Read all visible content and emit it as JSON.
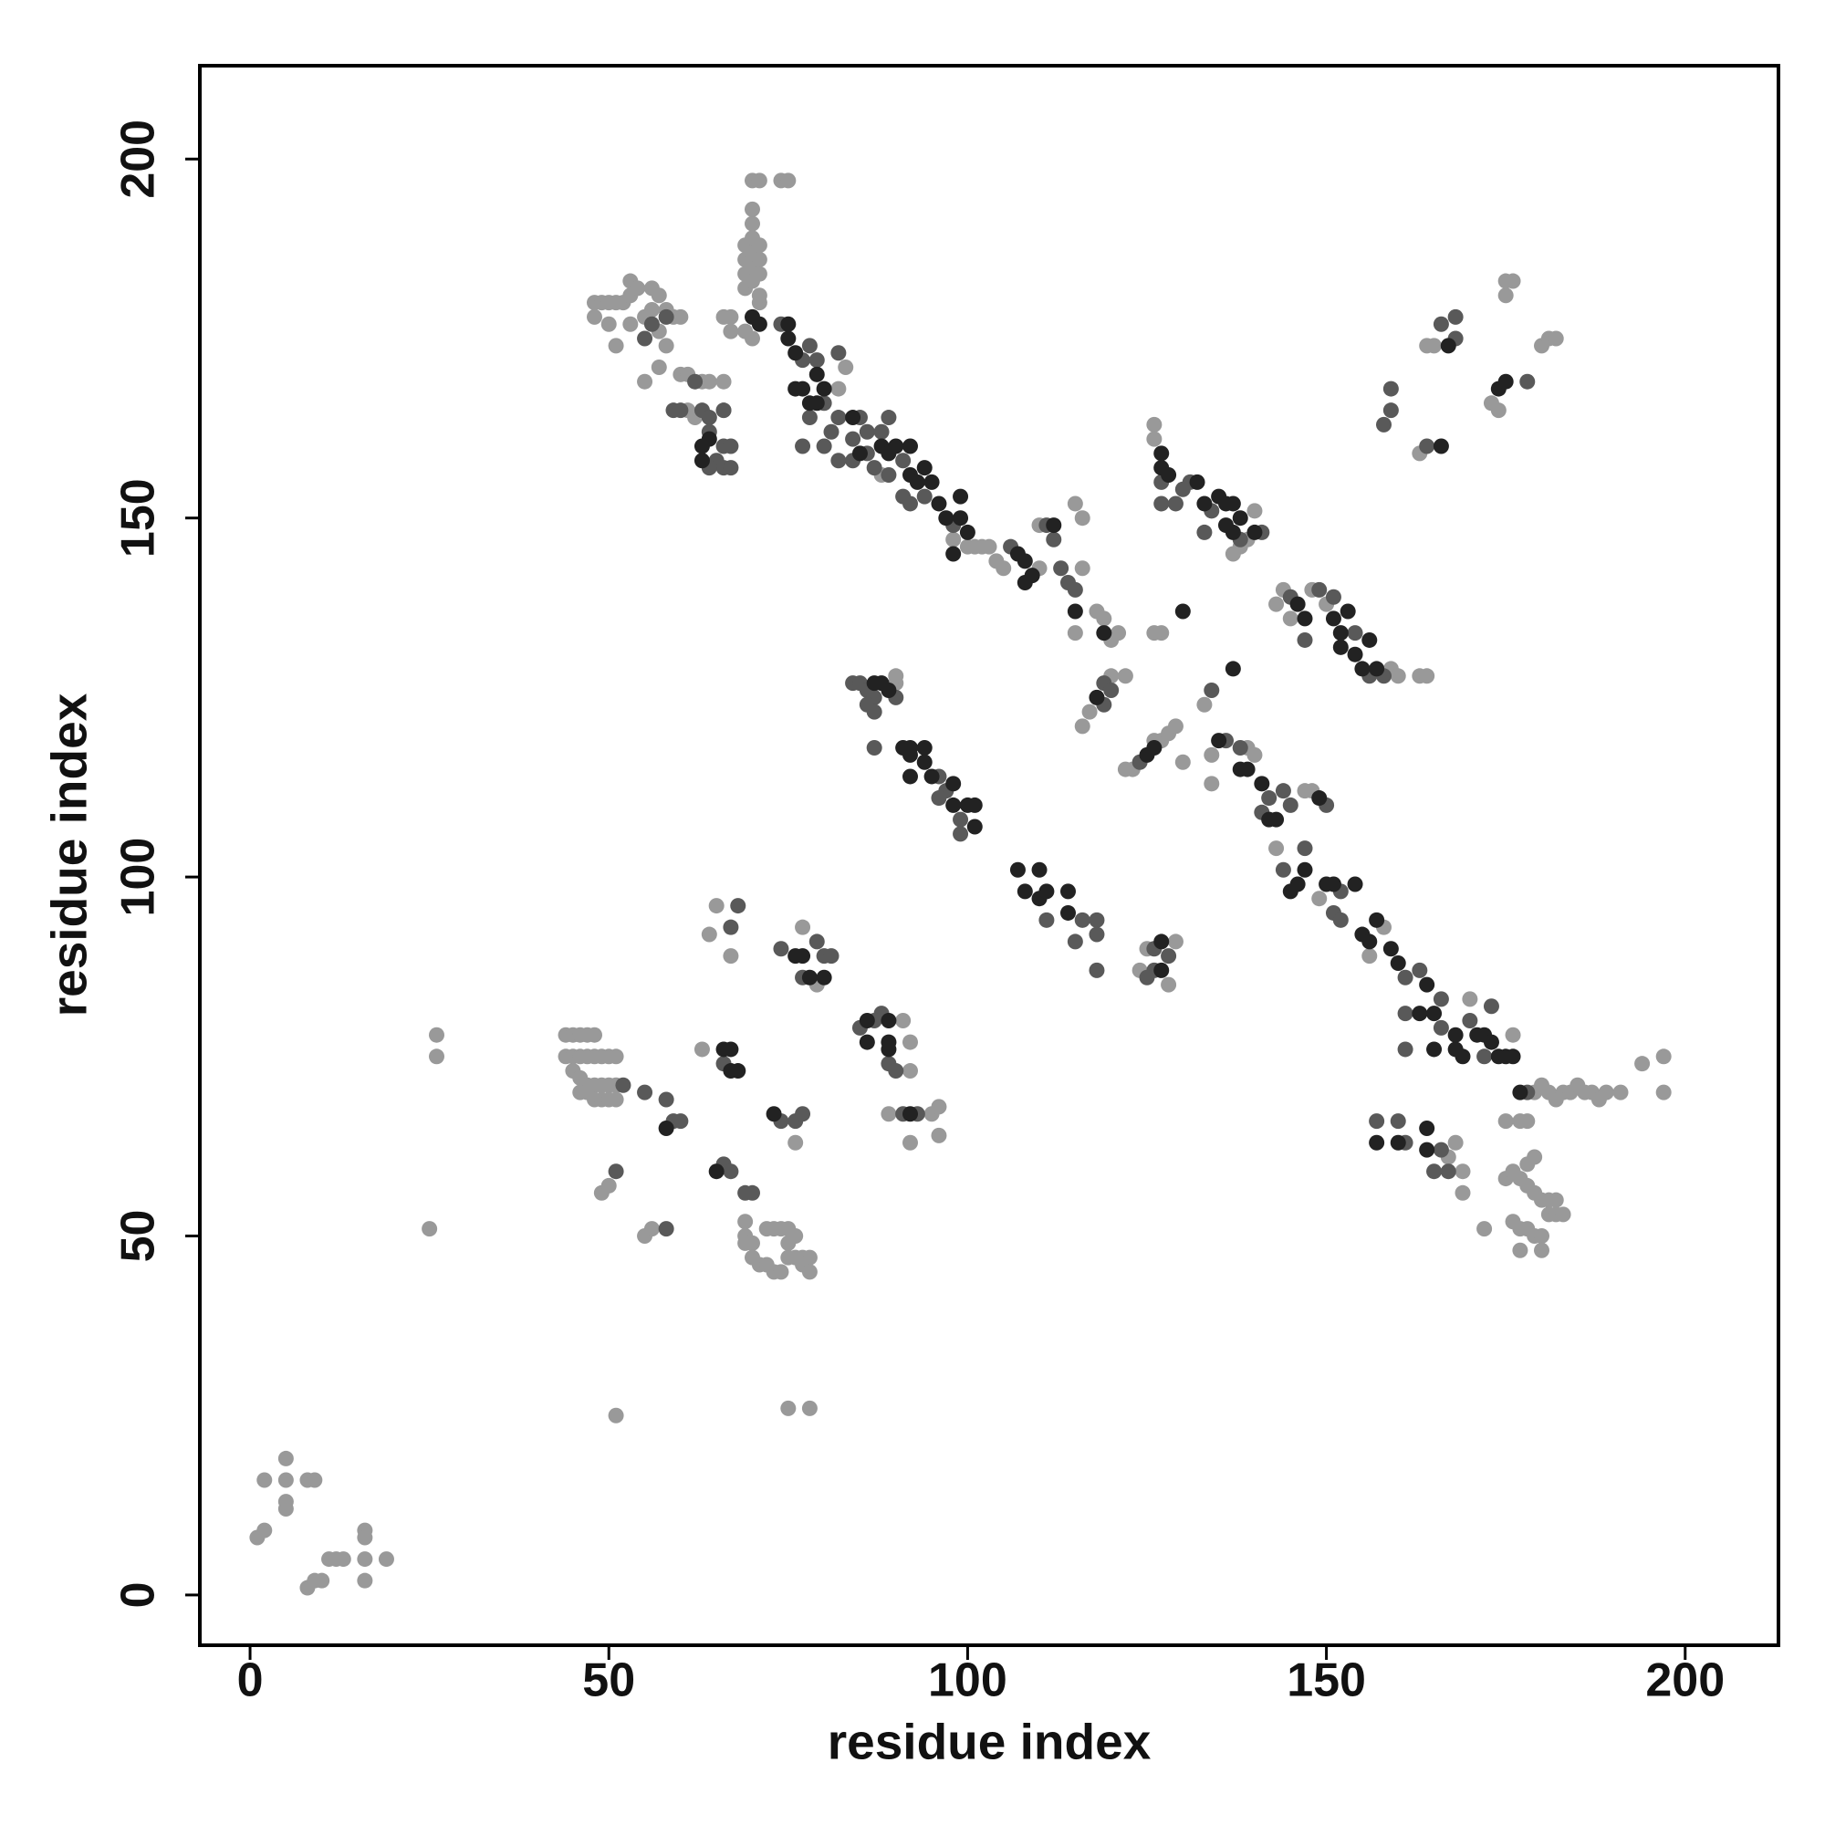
{
  "chart_data": {
    "type": "scatter",
    "x_label": "residue index",
    "y_label": "residue index",
    "xlim": [
      -7,
      213
    ],
    "ylim": [
      -7,
      213
    ],
    "xticks": [
      0,
      50,
      100,
      150,
      200
    ],
    "yticks": [
      0,
      50,
      100,
      150,
      200
    ],
    "grid": false,
    "series": [
      {
        "color": "#999999",
        "x": [
          1,
          2,
          2,
          5,
          5,
          5,
          5,
          8,
          9,
          8,
          9,
          10,
          11,
          12,
          13,
          16,
          16,
          16,
          16,
          19,
          26,
          26,
          25,
          51,
          75,
          78,
          44,
          45,
          46,
          47,
          48,
          44,
          45,
          46,
          47,
          48,
          49,
          50,
          51,
          45,
          46,
          47,
          48,
          49,
          50,
          51,
          46,
          47,
          48,
          49,
          50,
          51,
          55,
          56,
          49,
          50,
          63,
          76,
          69,
          69,
          69,
          70,
          70,
          71,
          72,
          73,
          74,
          75,
          76,
          77,
          78,
          75,
          76,
          77,
          78,
          72,
          73,
          74,
          75,
          64,
          65,
          67,
          77,
          79,
          91,
          92,
          92,
          89,
          95,
          96,
          96,
          92,
          124,
          125,
          128,
          129,
          90,
          90,
          71,
          83,
          82,
          98,
          100,
          101,
          102,
          103,
          104,
          105,
          110,
          110,
          116,
          115,
          118,
          119,
          120,
          121,
          116,
          115,
          88,
          117,
          120,
          122,
          116,
          122,
          123,
          127,
          128,
          129,
          126,
          130,
          127,
          126,
          126,
          126,
          137,
          138,
          140,
          139,
          143,
          144,
          148,
          159,
          160,
          163,
          164,
          145,
          150,
          133,
          139,
          140,
          134,
          134,
          148,
          143,
          149,
          158,
          156,
          170,
          176,
          147,
          167,
          168,
          169,
          169,
          175,
          177,
          178,
          175,
          176,
          177,
          178,
          179,
          180,
          181,
          182,
          176,
          177,
          178,
          179,
          180,
          181,
          182,
          183,
          177,
          180,
          172,
          178,
          179,
          179,
          180,
          181,
          182,
          183,
          184,
          185,
          186,
          187,
          188,
          189,
          191,
          194,
          197,
          197,
          163,
          164,
          165,
          173,
          174,
          175,
          176,
          175,
          180,
          181,
          182,
          48,
          49,
          50,
          51,
          52,
          53,
          53,
          54,
          56,
          57,
          58,
          59,
          60,
          56,
          55,
          48,
          50,
          51,
          53,
          57,
          57,
          58,
          55,
          60,
          61,
          63,
          64,
          61,
          62,
          66,
          66,
          66,
          67,
          67,
          69,
          70,
          69,
          69,
          69,
          69,
          70,
          70,
          70,
          70,
          71,
          71,
          71,
          71,
          70,
          70,
          70,
          71,
          74,
          75
        ],
        "y": [
          8,
          9,
          16,
          19,
          16,
          13,
          12,
          16,
          16,
          1,
          2,
          2,
          5,
          5,
          5,
          9,
          8,
          2,
          5,
          5,
          78,
          75,
          51,
          25,
          26,
          26,
          78,
          78,
          78,
          78,
          78,
          75,
          75,
          75,
          75,
          75,
          75,
          75,
          75,
          73,
          72,
          71,
          71,
          71,
          71,
          71,
          70,
          70,
          69,
          69,
          69,
          69,
          50,
          51,
          56,
          57,
          76,
          63,
          52,
          50,
          49,
          49,
          47,
          46,
          46,
          45,
          45,
          47,
          47,
          47,
          47,
          49,
          50,
          46,
          45,
          51,
          51,
          51,
          51,
          92,
          96,
          89,
          93,
          85,
          80,
          77,
          73,
          67,
          67,
          68,
          64,
          63,
          87,
          90,
          85,
          91,
          127,
          128,
          180,
          171,
          168,
          147,
          146,
          146,
          146,
          146,
          144,
          143,
          143,
          149,
          143,
          134,
          137,
          136,
          133,
          134,
          150,
          152,
          156,
          123,
          128,
          128,
          121,
          115,
          115,
          119,
          120,
          121,
          119,
          116,
          134,
          134,
          163,
          161,
          145,
          146,
          151,
          147,
          138,
          140,
          140,
          129,
          128,
          128,
          128,
          136,
          138,
          124,
          118,
          117,
          117,
          113,
          112,
          104,
          97,
          93,
          89,
          83,
          78,
          112,
          61,
          63,
          59,
          56,
          66,
          66,
          66,
          58,
          59,
          58,
          57,
          56,
          55,
          55,
          55,
          52,
          51,
          51,
          50,
          50,
          53,
          53,
          53,
          48,
          48,
          51,
          60,
          61,
          70,
          71,
          70,
          69,
          70,
          70,
          71,
          70,
          70,
          69,
          70,
          70,
          74,
          75,
          70,
          159,
          174,
          174,
          166,
          165,
          181,
          183,
          183,
          174,
          175,
          175,
          180,
          180,
          180,
          180,
          180,
          181,
          183,
          182,
          182,
          181,
          179,
          178,
          178,
          179,
          178,
          178,
          177,
          174,
          177,
          176,
          171,
          174,
          169,
          170,
          170,
          169,
          169,
          165,
          164,
          165,
          169,
          178,
          178,
          176,
          176,
          175,
          182,
          184,
          186,
          188,
          183,
          185,
          187,
          189,
          181,
          184,
          186,
          188,
          191,
          193,
          197,
          197,
          197,
          197
        ]
      },
      {
        "color": "#595959",
        "x": [
          52,
          55,
          58,
          59,
          60,
          51,
          58,
          66,
          66,
          67,
          69,
          70,
          76,
          77,
          74,
          68,
          67,
          74,
          79,
          80,
          81,
          77,
          85,
          88,
          89,
          90,
          91,
          93,
          87,
          111,
          115,
          116,
          118,
          118,
          118,
          126,
          128,
          126,
          125,
          84,
          85,
          86,
          87,
          86,
          87,
          90,
          87,
          97,
          99,
          99,
          96,
          96,
          77,
          78,
          79,
          80,
          82,
          85,
          82,
          84,
          86,
          88,
          89,
          91,
          94,
          98,
          106,
          112,
          113,
          114,
          115,
          111,
          119,
          119,
          120,
          124,
          127,
          127,
          129,
          130,
          131,
          134,
          138,
          141,
          133,
          145,
          149,
          154,
          156,
          158,
          147,
          151,
          134,
          138,
          136,
          141,
          142,
          144,
          145,
          150,
          147,
          144,
          152,
          151,
          152,
          161,
          163,
          166,
          161,
          166,
          170,
          172,
          161,
          173,
          157,
          161,
          160,
          166,
          165,
          167,
          178,
          158,
          159,
          159,
          164,
          166,
          168,
          168,
          178,
          56,
          58,
          55,
          62,
          59,
          60,
          63,
          64,
          64,
          66,
          67,
          65,
          66,
          64,
          67,
          66,
          74,
          77,
          78,
          80,
          81,
          82,
          84,
          86,
          87,
          89,
          91,
          92
        ],
        "y": [
          71,
          70,
          69,
          66,
          66,
          59,
          51,
          74,
          60,
          59,
          56,
          56,
          66,
          67,
          66,
          96,
          93,
          90,
          91,
          89,
          89,
          86,
          79,
          81,
          74,
          73,
          67,
          67,
          80,
          94,
          91,
          94,
          94,
          92,
          87,
          87,
          89,
          90,
          86,
          127,
          127,
          126,
          125,
          124,
          123,
          125,
          118,
          112,
          108,
          106,
          111,
          114,
          172,
          174,
          172,
          166,
          173,
          164,
          164,
          161,
          162,
          162,
          164,
          158,
          153,
          149,
          146,
          147,
          143,
          141,
          140,
          149,
          127,
          124,
          126,
          116,
          155,
          152,
          152,
          154,
          155,
          151,
          147,
          148,
          148,
          139,
          140,
          134,
          128,
          128,
          133,
          139,
          126,
          118,
          119,
          109,
          111,
          112,
          110,
          110,
          104,
          101,
          98,
          95,
          94,
          86,
          87,
          83,
          81,
          79,
          80,
          75,
          76,
          82,
          66,
          63,
          66,
          62,
          59,
          59,
          70,
          163,
          165,
          168,
          160,
          177,
          175,
          178,
          169,
          177,
          178,
          175,
          169,
          165,
          165,
          165,
          164,
          162,
          160,
          160,
          158,
          157,
          157,
          157,
          165,
          177,
          160,
          164,
          160,
          162,
          158,
          158,
          159,
          157,
          156,
          153,
          152
        ]
      },
      {
        "color": "#222222",
        "x": [
          58,
          66,
          67,
          67,
          68,
          65,
          73,
          76,
          77,
          78,
          80,
          86,
          86,
          89,
          89,
          89,
          92,
          107,
          108,
          110,
          110,
          111,
          114,
          114,
          127,
          127,
          87,
          88,
          89,
          91,
          92,
          94,
          92,
          94,
          95,
          98,
          98,
          100,
          101,
          101,
          92,
          70,
          75,
          75,
          76,
          79,
          80,
          76,
          77,
          78,
          79,
          84,
          85,
          88,
          89,
          90,
          92,
          93,
          94,
          95,
          92,
          96,
          97,
          99,
          99,
          100,
          98,
          107,
          108,
          108,
          109,
          112,
          115,
          119,
          118,
          125,
          126,
          130,
          127,
          128,
          132,
          133,
          135,
          136,
          137,
          136,
          137,
          140,
          138,
          127,
          146,
          147,
          151,
          152,
          153,
          152,
          154,
          155,
          157,
          156,
          137,
          135,
          138,
          139,
          141,
          143,
          142,
          149,
          147,
          146,
          145,
          150,
          151,
          154,
          155,
          156,
          157,
          159,
          160,
          164,
          163,
          165,
          168,
          171,
          172,
          173,
          174,
          175,
          176,
          169,
          168,
          165,
          177,
          157,
          160,
          164,
          164,
          166,
          167,
          174,
          175,
          63,
          64,
          63,
          71
        ],
        "y": [
          65,
          76,
          76,
          73,
          73,
          59,
          67,
          89,
          89,
          86,
          86,
          80,
          77,
          80,
          77,
          76,
          67,
          101,
          98,
          101,
          97,
          98,
          95,
          98,
          87,
          91,
          127,
          127,
          126,
          118,
          117,
          118,
          114,
          116,
          114,
          113,
          110,
          110,
          110,
          107,
          118,
          178,
          177,
          175,
          173,
          170,
          168,
          168,
          168,
          166,
          166,
          164,
          159,
          160,
          159,
          160,
          156,
          155,
          157,
          155,
          160,
          152,
          150,
          150,
          153,
          148,
          145,
          145,
          144,
          141,
          142,
          149,
          137,
          134,
          125,
          117,
          118,
          137,
          157,
          156,
          155,
          152,
          153,
          152,
          152,
          149,
          148,
          148,
          150,
          159,
          138,
          136,
          136,
          134,
          137,
          132,
          131,
          129,
          129,
          133,
          129,
          119,
          115,
          115,
          113,
          108,
          108,
          111,
          101,
          99,
          98,
          99,
          99,
          99,
          92,
          91,
          94,
          90,
          88,
          85,
          81,
          81,
          78,
          78,
          78,
          77,
          75,
          75,
          75,
          75,
          76,
          76,
          70,
          63,
          63,
          65,
          62,
          160,
          174,
          168,
          169,
          160,
          161,
          158,
          177
        ]
      }
    ]
  }
}
